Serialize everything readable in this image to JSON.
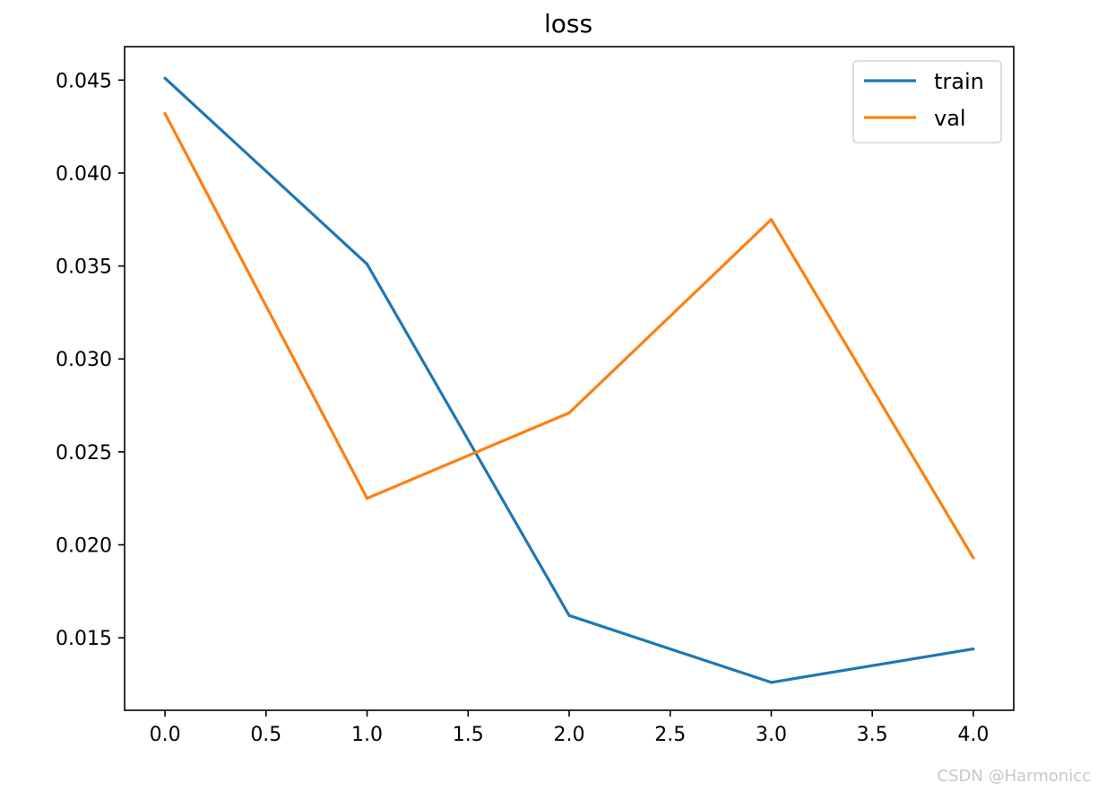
{
  "chart_data": {
    "type": "line",
    "title": "loss",
    "xlabel": "",
    "ylabel": "",
    "x": [
      0,
      1,
      2,
      3,
      4
    ],
    "series": [
      {
        "name": "train",
        "color": "#1f77b4",
        "values": [
          0.0451,
          0.0351,
          0.0162,
          0.0126,
          0.0144
        ]
      },
      {
        "name": "val",
        "color": "#ff7f0e",
        "values": [
          0.0432,
          0.0225,
          0.0271,
          0.0375,
          0.0193
        ]
      }
    ],
    "xlim": [
      -0.2,
      4.2
    ],
    "ylim": [
      0.0111,
      0.0468
    ],
    "xticks": [
      0.0,
      0.5,
      1.0,
      1.5,
      2.0,
      2.5,
      3.0,
      3.5,
      4.0
    ],
    "xtick_labels": [
      "0.0",
      "0.5",
      "1.0",
      "1.5",
      "2.0",
      "2.5",
      "3.0",
      "3.5",
      "4.0"
    ],
    "yticks": [
      0.015,
      0.02,
      0.025,
      0.03,
      0.035,
      0.04,
      0.045
    ],
    "ytick_labels": [
      "0.015",
      "0.020",
      "0.025",
      "0.030",
      "0.035",
      "0.040",
      "0.045"
    ],
    "grid": false,
    "legend_position": "top-right"
  },
  "watermark": "CSDN @Harmonicc"
}
